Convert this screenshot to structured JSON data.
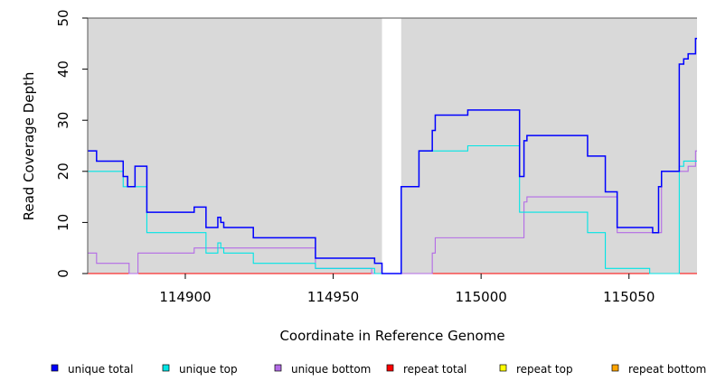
{
  "chart_data": {
    "type": "line",
    "title": "",
    "xlabel": "Coordinate in Reference Genome",
    "ylabel": "Read Coverage Depth",
    "xlim": [
      114867,
      115073
    ],
    "ylim": [
      0,
      50
    ],
    "x_ticks": [
      114900,
      114950,
      115000,
      115050
    ],
    "x_tick_labels": [
      "114900",
      "114950",
      "115000",
      "115050"
    ],
    "y_ticks": [
      0,
      10,
      20,
      30,
      40,
      50
    ],
    "y_tick_labels": [
      "0",
      "10",
      "20",
      "30",
      "40",
      "50"
    ],
    "grid": false,
    "legend_position": "bottom",
    "shaded_regions": [
      {
        "x0": 114867,
        "x1": 114966.5,
        "color": "#d9d9d9"
      },
      {
        "x0": 114973,
        "x1": 115073,
        "color": "#d9d9d9"
      }
    ],
    "series": [
      {
        "name": "unique total",
        "color": "#0000ff",
        "points": [
          [
            114867,
            24
          ],
          [
            114870,
            24
          ],
          [
            114870,
            22
          ],
          [
            114879,
            22
          ],
          [
            114879,
            19
          ],
          [
            114880.5,
            19
          ],
          [
            114880.5,
            17
          ],
          [
            114883,
            17
          ],
          [
            114883,
            21
          ],
          [
            114887,
            21
          ],
          [
            114887,
            12
          ],
          [
            114903,
            12
          ],
          [
            114903,
            13
          ],
          [
            114907,
            13
          ],
          [
            114907,
            9
          ],
          [
            114911,
            9
          ],
          [
            114911,
            11
          ],
          [
            114912,
            11
          ],
          [
            114912,
            10
          ],
          [
            114913,
            10
          ],
          [
            114913,
            9
          ],
          [
            114923,
            9
          ],
          [
            114923,
            7
          ],
          [
            114944,
            7
          ],
          [
            114944,
            3
          ],
          [
            114964,
            3
          ],
          [
            114964,
            2
          ],
          [
            114966.5,
            2
          ],
          [
            114966.5,
            0
          ],
          [
            114973,
            0
          ],
          [
            114973,
            17
          ],
          [
            114979,
            17
          ],
          [
            114979,
            24
          ],
          [
            114983.5,
            24
          ],
          [
            114983.5,
            28
          ],
          [
            114984.5,
            28
          ],
          [
            114984.5,
            31
          ],
          [
            114995.5,
            31
          ],
          [
            114995.5,
            32
          ],
          [
            115013,
            32
          ],
          [
            115013,
            19
          ],
          [
            115014.5,
            19
          ],
          [
            115014.5,
            26
          ],
          [
            115015.5,
            26
          ],
          [
            115015.5,
            27
          ],
          [
            115036,
            27
          ],
          [
            115036,
            23
          ],
          [
            115042,
            23
          ],
          [
            115042,
            16
          ],
          [
            115046,
            16
          ],
          [
            115046,
            9
          ],
          [
            115058,
            9
          ],
          [
            115058,
            8
          ],
          [
            115060,
            8
          ],
          [
            115060,
            17
          ],
          [
            115061,
            17
          ],
          [
            115061,
            20
          ],
          [
            115067,
            20
          ],
          [
            115067,
            41
          ],
          [
            115068.5,
            41
          ],
          [
            115068.5,
            42
          ],
          [
            115070,
            42
          ],
          [
            115070,
            43
          ],
          [
            115072.5,
            43
          ],
          [
            115072.5,
            46
          ],
          [
            115073,
            46
          ]
        ]
      },
      {
        "name": "unique top",
        "color": "#00e5e5",
        "points": [
          [
            114867,
            20
          ],
          [
            114879,
            20
          ],
          [
            114879,
            17
          ],
          [
            114887,
            17
          ],
          [
            114887,
            8
          ],
          [
            114907,
            8
          ],
          [
            114907,
            4
          ],
          [
            114911,
            4
          ],
          [
            114911,
            6
          ],
          [
            114912,
            6
          ],
          [
            114912,
            5
          ],
          [
            114913,
            5
          ],
          [
            114913,
            4
          ],
          [
            114923,
            4
          ],
          [
            114923,
            2
          ],
          [
            114944,
            2
          ],
          [
            114944,
            1
          ],
          [
            114964,
            1
          ],
          [
            114964,
            0
          ],
          [
            114973,
            0
          ],
          [
            114973,
            17
          ],
          [
            114979,
            17
          ],
          [
            114979,
            24
          ],
          [
            114995.5,
            24
          ],
          [
            114995.5,
            25
          ],
          [
            115013,
            25
          ],
          [
            115013,
            12
          ],
          [
            115036,
            12
          ],
          [
            115036,
            8
          ],
          [
            115042,
            8
          ],
          [
            115042,
            1
          ],
          [
            115057,
            1
          ],
          [
            115057,
            0
          ],
          [
            115067,
            0
          ],
          [
            115067,
            21
          ],
          [
            115068.5,
            21
          ],
          [
            115068.5,
            22
          ],
          [
            115073,
            22
          ]
        ]
      },
      {
        "name": "unique bottom",
        "color": "#b36be6",
        "points": [
          [
            114867,
            4
          ],
          [
            114870,
            4
          ],
          [
            114870,
            2
          ],
          [
            114881,
            2
          ],
          [
            114881,
            0
          ],
          [
            114884,
            0
          ],
          [
            114884,
            4
          ],
          [
            114903,
            4
          ],
          [
            114903,
            5
          ],
          [
            114944,
            5
          ],
          [
            114944,
            1
          ],
          [
            114963,
            1
          ],
          [
            114963,
            0
          ],
          [
            114983.5,
            0
          ],
          [
            114983.5,
            4
          ],
          [
            114984.5,
            4
          ],
          [
            114984.5,
            7
          ],
          [
            115014.5,
            7
          ],
          [
            115014.5,
            14
          ],
          [
            115015.5,
            14
          ],
          [
            115015.5,
            15
          ],
          [
            115046,
            15
          ],
          [
            115046,
            8
          ],
          [
            115061,
            8
          ],
          [
            115061,
            20
          ],
          [
            115070,
            20
          ],
          [
            115070,
            21
          ],
          [
            115072.5,
            21
          ],
          [
            115072.5,
            24
          ],
          [
            115073,
            24
          ]
        ]
      },
      {
        "name": "repeat total",
        "color": "#ff0000",
        "points": [
          [
            114867,
            0
          ],
          [
            115073,
            0
          ]
        ]
      },
      {
        "name": "repeat top",
        "color": "#ffff00",
        "points": [
          [
            114867,
            0
          ],
          [
            115073,
            0
          ]
        ]
      },
      {
        "name": "repeat bottom",
        "color": "#ffa500",
        "points": [
          [
            114867,
            0
          ],
          [
            115073,
            0
          ]
        ]
      }
    ]
  }
}
